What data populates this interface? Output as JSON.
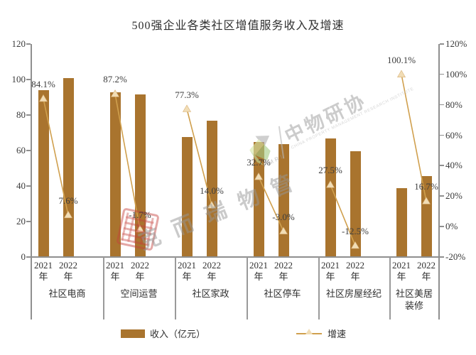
{
  "chart_data": {
    "type": "combo-bar-line",
    "title": "500强企业各类社区增值服务收入及增速",
    "categories": [
      "社区电商",
      "空间运营",
      "社区家政",
      "社区停车",
      "社区房屋经纪",
      "社区美居装修"
    ],
    "subcategories": [
      "2021年",
      "2022年"
    ],
    "series": [
      {
        "name": "收入（亿元）",
        "type": "bar",
        "axis": "left",
        "color": "#A9742E",
        "values": [
          [
            94,
            101
          ],
          [
            93,
            91.5
          ],
          [
            67.5,
            77
          ],
          [
            65,
            63.5
          ],
          [
            67,
            59.5
          ],
          [
            39,
            45.5
          ]
        ]
      },
      {
        "name": "增速",
        "type": "line",
        "axis": "right",
        "color": "#D0A04E",
        "marker": "triangle-up",
        "marker_color": "#F1DDB6",
        "values": [
          [
            84.1,
            7.6
          ],
          [
            87.2,
            -1.7
          ],
          [
            77.3,
            14.0
          ],
          [
            32.7,
            -3.0
          ],
          [
            27.5,
            -12.5
          ],
          [
            100.1,
            16.7
          ]
        ],
        "labels": [
          [
            "84.1%",
            "7.6%"
          ],
          [
            "87.2%",
            "-1.7%"
          ],
          [
            "77.3%",
            "14.0%"
          ],
          [
            "32.7%",
            "-3.0%"
          ],
          [
            "27.5%",
            "-12.5%"
          ],
          [
            "100.1%",
            "16.7%"
          ]
        ]
      }
    ],
    "left_axis": {
      "min": 0,
      "max": 120,
      "tick_labels": [
        "0",
        "20",
        "40",
        "60",
        "80",
        "100",
        "120"
      ]
    },
    "right_axis": {
      "min": -20,
      "max": 120,
      "tick_labels": [
        "-20%",
        "0%",
        "20%",
        "40%",
        "60%",
        "80%",
        "100%",
        "120%"
      ]
    },
    "legend_position": "bottom",
    "grid": false,
    "legend": [
      {
        "label": "收入（亿元）",
        "swatch": "bar"
      },
      {
        "label": "增速",
        "swatch": "line-triangle"
      }
    ]
  },
  "watermarks": {
    "logo_cn": "中物研协",
    "logo_en": "CHINA PROPERTY MANAGEMENT RESEARCH INSTITUTE",
    "logo_abbr": "PMRI",
    "brush_text": "克而瑞物管"
  },
  "colors": {
    "bar": "#A9742E",
    "line": "#D0A04E",
    "marker_fill": "#F1DDB6",
    "axis": "#8F8F8F",
    "text": "#3A3A3A",
    "seal_red": "#C5403C",
    "watermark_gray": "#AEAEAE"
  }
}
